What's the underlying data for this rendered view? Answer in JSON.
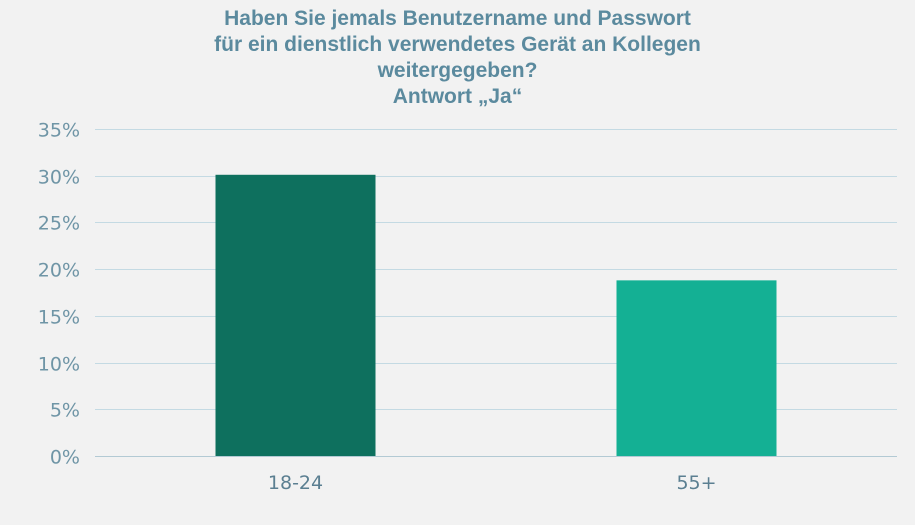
{
  "chart_data": {
    "type": "bar",
    "title_lines": [
      "Haben Sie jemals Benutzername und Passwort",
      "für ein dienstlich verwendetes Gerät an Kollegen",
      "weitergegeben?",
      "Antwort „Ja“"
    ],
    "categories": [
      "18-24",
      "55+"
    ],
    "values": [
      30.1,
      18.8
    ],
    "bar_colors": [
      "#0e705e",
      "#14b094"
    ],
    "ylim": [
      0,
      35
    ],
    "yticks": [
      0,
      5,
      10,
      15,
      20,
      25,
      30,
      35
    ],
    "ytick_labels": [
      "0%",
      "5%",
      "10%",
      "15%",
      "20%",
      "25%",
      "30%",
      "35%"
    ],
    "grid": true,
    "xlabel": "",
    "ylabel": ""
  }
}
